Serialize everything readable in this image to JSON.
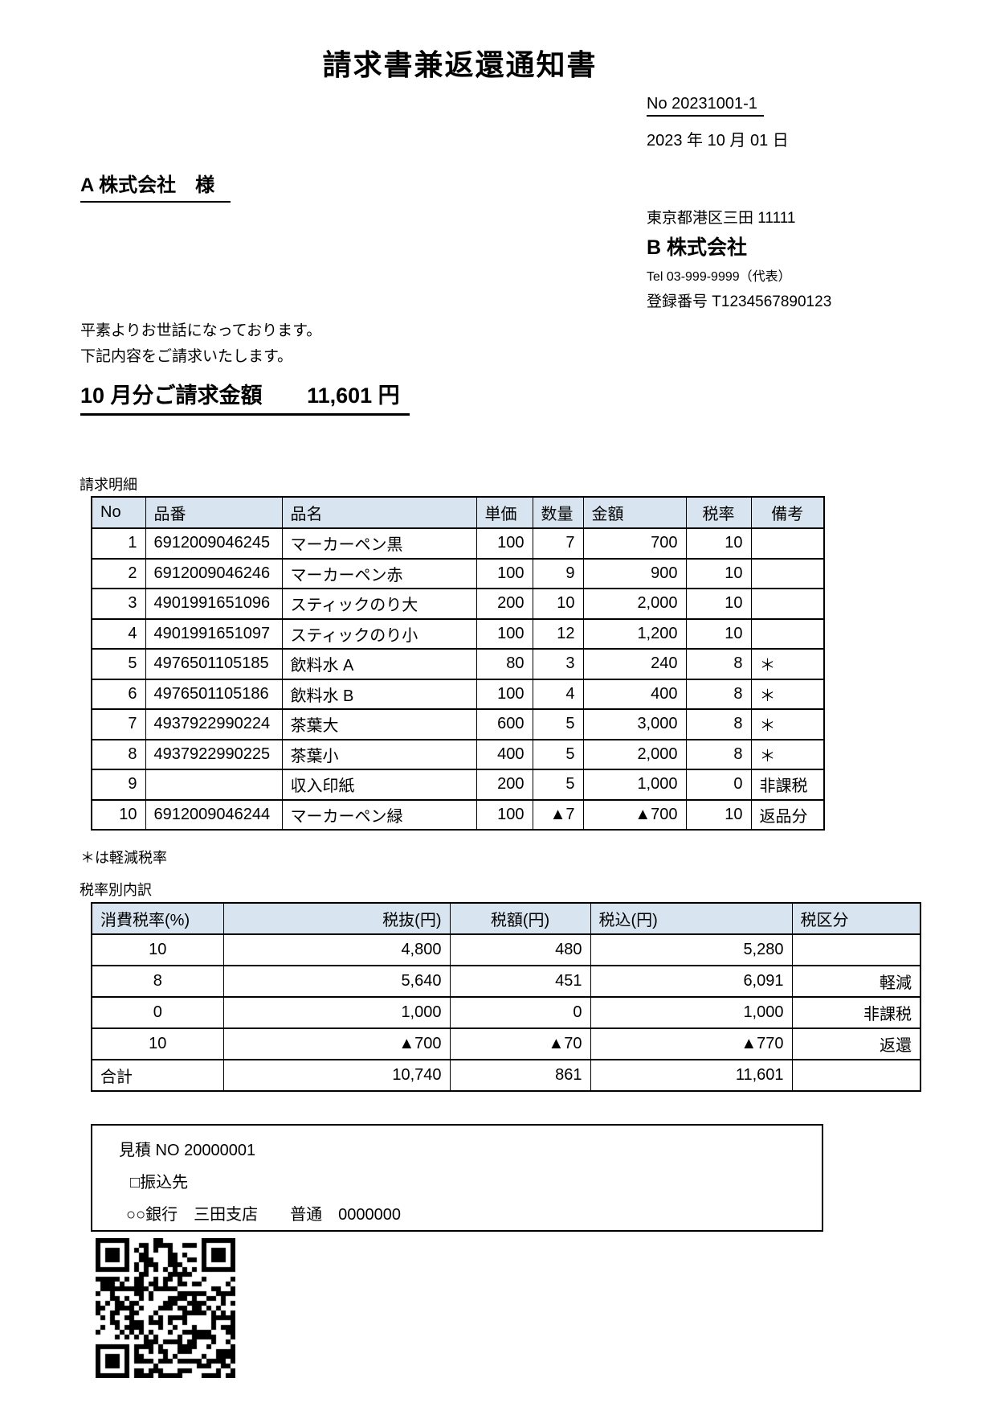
{
  "title": "請求書兼返還通知書",
  "doc_no": "No 20231001-1",
  "date": "2023 年 10 月 01 日",
  "recipient": "A 株式会社　様",
  "issuer": {
    "address": "東京都港区三田 11111",
    "name": "B 株式会社",
    "tel": "Tel 03-999-9999（代表）",
    "reg_no": "登録番号 T1234567890123"
  },
  "greeting": {
    "line1": "平素よりお世話になっております。",
    "line2": "下記内容をご請求いたします。"
  },
  "billing": {
    "label": "10 月分ご請求金額",
    "amount": "11,601 円"
  },
  "detail": {
    "caption": "請求明細",
    "headers": [
      "No",
      "品番",
      "品名",
      "単価",
      "数量",
      "金額",
      "税率",
      "備考"
    ],
    "rows": [
      [
        "1",
        "6912009046245",
        "マーカーペン黒",
        "100",
        "7",
        "700",
        "10",
        ""
      ],
      [
        "2",
        "6912009046246",
        "マーカーペン赤",
        "100",
        "9",
        "900",
        "10",
        ""
      ],
      [
        "3",
        "4901991651096",
        "スティックのり大",
        "200",
        "10",
        "2,000",
        "10",
        ""
      ],
      [
        "4",
        "4901991651097",
        "スティックのり小",
        "100",
        "12",
        "1,200",
        "10",
        ""
      ],
      [
        "5",
        "4976501105185",
        "飲料水 A",
        "80",
        "3",
        "240",
        "8",
        "＊"
      ],
      [
        "6",
        "4976501105186",
        "飲料水 B",
        "100",
        "4",
        "400",
        "8",
        "＊"
      ],
      [
        "7",
        "4937922990224",
        "茶葉大",
        "600",
        "5",
        "3,000",
        "8",
        "＊"
      ],
      [
        "8",
        "4937922990225",
        "茶葉小",
        "400",
        "5",
        "2,000",
        "8",
        "＊"
      ],
      [
        "9",
        "",
        "収入印紙",
        "200",
        "5",
        "1,000",
        "0",
        "非課税"
      ],
      [
        "10",
        "6912009046244",
        "マーカーペン緑",
        "100",
        "▲7",
        "▲700",
        "10",
        "返品分"
      ]
    ],
    "note": "＊は軽減税率"
  },
  "tax": {
    "caption": "税率別内訳",
    "headers": [
      "消費税率(%)",
      "税抜(円)",
      "税額(円)",
      "税込(円)",
      "税区分"
    ],
    "rows": [
      [
        "10",
        "4,800",
        "480",
        "5,280",
        ""
      ],
      [
        "8",
        "5,640",
        "451",
        "6,091",
        "軽減"
      ],
      [
        "0",
        "1,000",
        "0",
        "1,000",
        "非課税"
      ],
      [
        "10",
        "▲700",
        "▲70",
        "▲770",
        "返還"
      ],
      [
        "合計",
        "10,740",
        "861",
        "11,601",
        ""
      ]
    ],
    "total_row_label": "合計"
  },
  "footer": {
    "estimate_no": "見積 NO 20000001",
    "transfer_label": "□振込先",
    "bank_line": "○○銀行　三田支店　　普通　0000000"
  }
}
